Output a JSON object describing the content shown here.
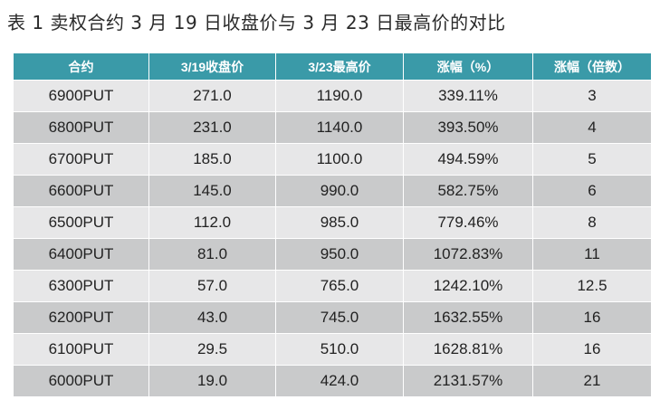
{
  "title": "表 1 卖权合约 3 月 19 日收盘价与 3 月 23 日最高价的对比",
  "table": {
    "headers": [
      "合约",
      "3/19收盘价",
      "3/23最高价",
      "涨幅（%）",
      "涨幅（倍数）"
    ],
    "rows": [
      [
        "6900PUT",
        "271.0",
        "1190.0",
        "339.11%",
        "3"
      ],
      [
        "6800PUT",
        "231.0",
        "1140.0",
        "393.50%",
        "4"
      ],
      [
        "6700PUT",
        "185.0",
        "1100.0",
        "494.59%",
        "5"
      ],
      [
        "6600PUT",
        "145.0",
        "990.0",
        "582.75%",
        "6"
      ],
      [
        "6500PUT",
        "112.0",
        "985.0",
        "779.46%",
        "8"
      ],
      [
        "6400PUT",
        "81.0",
        "950.0",
        "1072.83%",
        "11"
      ],
      [
        "6300PUT",
        "57.0",
        "765.0",
        "1242.10%",
        "12.5"
      ],
      [
        "6200PUT",
        "43.0",
        "745.0",
        "1632.55%",
        "16"
      ],
      [
        "6100PUT",
        "29.5",
        "510.0",
        "1628.81%",
        "16"
      ],
      [
        "6000PUT",
        "19.0",
        "424.0",
        "2131.57%",
        "21"
      ]
    ]
  },
  "colors": {
    "header_bg": "#3a9aa8",
    "row_light": "#e7e7e8",
    "row_dark": "#c9cacb"
  }
}
